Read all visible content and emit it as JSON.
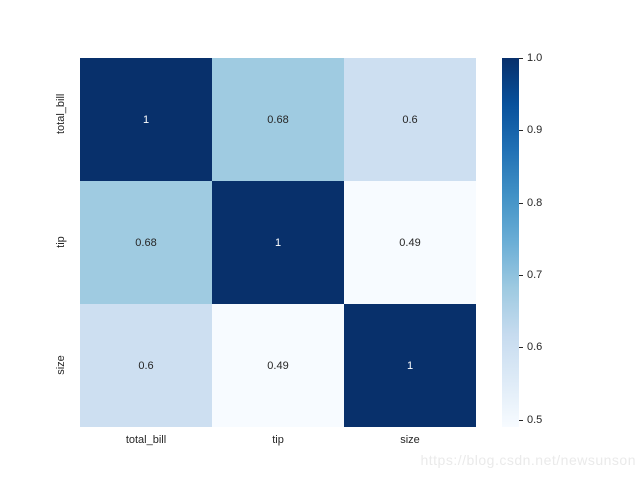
{
  "watermark": {
    "text": "https://blog.csdn.net/newsunson",
    "color": "#eaeaea"
  },
  "chart_data": {
    "type": "heatmap",
    "title": "",
    "xlabel": "",
    "ylabel": "",
    "x_categories": [
      "total_bill",
      "tip",
      "size"
    ],
    "y_categories": [
      "total_bill",
      "tip",
      "size"
    ],
    "matrix": [
      [
        1,
        0.68,
        0.6
      ],
      [
        0.68,
        1,
        0.49
      ],
      [
        0.6,
        0.49,
        1
      ]
    ],
    "cell_labels": [
      [
        "1",
        "0.68",
        "0.6"
      ],
      [
        "0.68",
        "1",
        "0.49"
      ],
      [
        "0.6",
        "0.49",
        "1"
      ]
    ],
    "cell_colors": [
      [
        "#08306b",
        "#9fcbe1",
        "#cddff1"
      ],
      [
        "#9fcbe1",
        "#08306b",
        "#f7fbff"
      ],
      [
        "#cddff1",
        "#f7fbff",
        "#08306b"
      ]
    ],
    "cell_text_colors": [
      [
        "#ffffff",
        "#262626",
        "#262626"
      ],
      [
        "#262626",
        "#ffffff",
        "#262626"
      ],
      [
        "#262626",
        "#262626",
        "#ffffff"
      ]
    ],
    "colormap": {
      "name": "Blues",
      "gradient_stops_top_to_bottom": [
        "#08306b",
        "#08519c",
        "#2171b5",
        "#4292c6",
        "#6baed6",
        "#9ecae1",
        "#c6dbef",
        "#deebf7",
        "#f7fbff"
      ]
    },
    "colorbar": {
      "vmin": 0.49,
      "vmax": 1.0,
      "tick_values": [
        1.0,
        0.9,
        0.8,
        0.7,
        0.6,
        0.5
      ],
      "tick_labels": [
        "1.0",
        "0.9",
        "0.8",
        "0.7",
        "0.6",
        "0.5"
      ],
      "position": "right"
    },
    "grid": false,
    "background": "#ffffff",
    "tick_text_color": "#262626"
  }
}
